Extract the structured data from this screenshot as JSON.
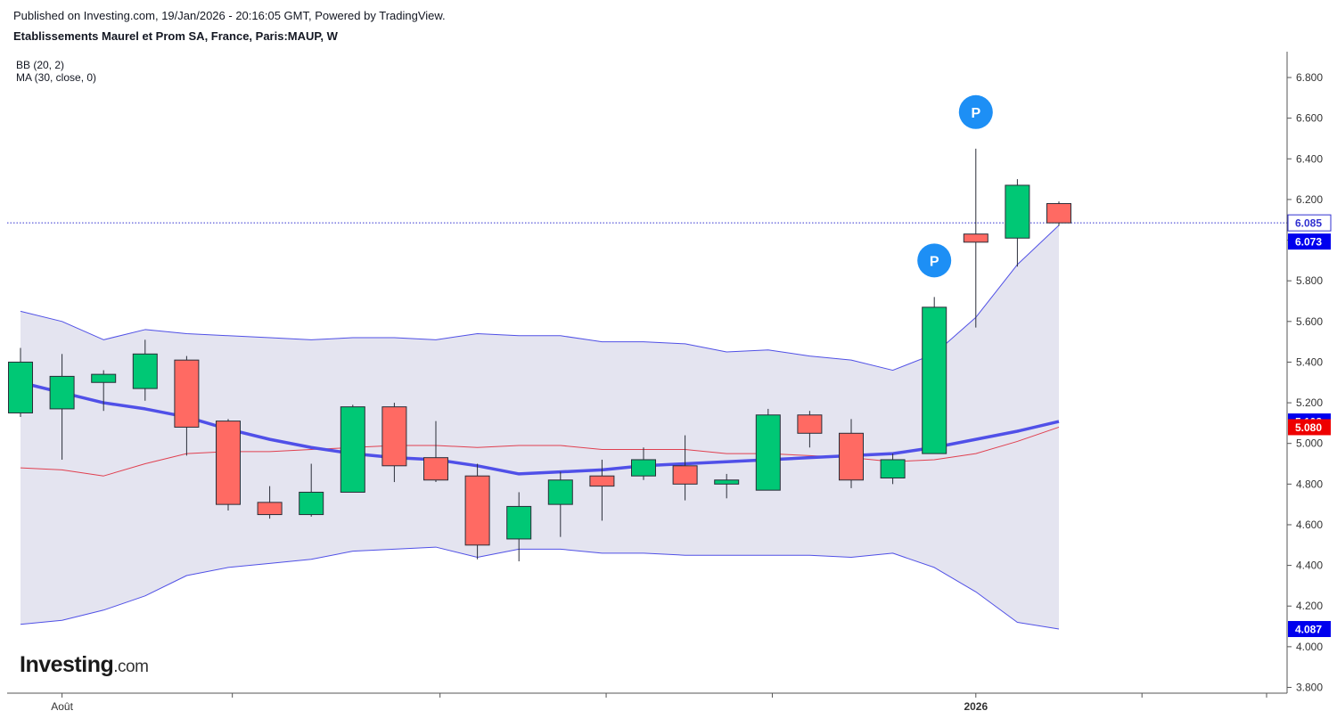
{
  "header": {
    "published": "Published on Investing.com, 19/Jan/2026 - 20:16:05 GMT, Powered by TradingView.",
    "title": "Etablissements Maurel et Prom SA, France, Paris:MAUP, W"
  },
  "indicators": {
    "bb_label": "BB (20, 2)",
    "ma_label": "MA (30, close, 0)"
  },
  "logo": {
    "brand": "Investing",
    "suffix": ".com"
  },
  "colors": {
    "up": "#00c875",
    "down": "#ff6a63",
    "band_fill": "#e4e4f0",
    "bb_line": "#5050e6",
    "ma_line": "#5050e8",
    "basis_line": "#e04050",
    "last_price_line": "#3030d0",
    "badge_blue": "#0000ee",
    "badge_red": "#ee0000",
    "p_marker": "#1d8ff5"
  },
  "chart_data": {
    "type": "candlestick",
    "timeframe": "W",
    "ylim": [
      3.8,
      6.9
    ],
    "y_ticks": [
      "3.800",
      "4.000",
      "4.200",
      "4.400",
      "4.600",
      "4.800",
      "5.000",
      "5.200",
      "5.400",
      "5.600",
      "5.800",
      "6.000",
      "6.200",
      "6.400",
      "6.600",
      "6.800"
    ],
    "x_labels": [
      {
        "label": "Août",
        "index": 1
      },
      {
        "label": "2026",
        "index": 23
      }
    ],
    "candles": [
      {
        "o": 5.15,
        "h": 5.47,
        "l": 5.13,
        "c": 5.4
      },
      {
        "o": 5.17,
        "h": 5.44,
        "l": 4.92,
        "c": 5.33
      },
      {
        "o": 5.3,
        "h": 5.36,
        "l": 5.16,
        "c": 5.34
      },
      {
        "o": 5.27,
        "h": 5.51,
        "l": 5.21,
        "c": 5.44
      },
      {
        "o": 5.41,
        "h": 5.43,
        "l": 4.94,
        "c": 5.08
      },
      {
        "o": 5.11,
        "h": 5.12,
        "l": 4.67,
        "c": 4.7
      },
      {
        "o": 4.71,
        "h": 4.79,
        "l": 4.63,
        "c": 4.65
      },
      {
        "o": 4.65,
        "h": 4.9,
        "l": 4.64,
        "c": 4.76
      },
      {
        "o": 4.76,
        "h": 5.19,
        "l": 4.76,
        "c": 5.18
      },
      {
        "o": 5.18,
        "h": 5.2,
        "l": 4.81,
        "c": 4.89
      },
      {
        "o": 4.93,
        "h": 5.11,
        "l": 4.81,
        "c": 4.82
      },
      {
        "o": 4.84,
        "h": 4.9,
        "l": 4.43,
        "c": 4.5
      },
      {
        "o": 4.53,
        "h": 4.76,
        "l": 4.42,
        "c": 4.69
      },
      {
        "o": 4.7,
        "h": 4.86,
        "l": 4.54,
        "c": 4.82
      },
      {
        "o": 4.84,
        "h": 4.92,
        "l": 4.62,
        "c": 4.79
      },
      {
        "o": 4.84,
        "h": 4.98,
        "l": 4.82,
        "c": 4.92
      },
      {
        "o": 4.89,
        "h": 5.04,
        "l": 4.72,
        "c": 4.8
      },
      {
        "o": 4.8,
        "h": 4.85,
        "l": 4.73,
        "c": 4.82
      },
      {
        "o": 4.77,
        "h": 5.17,
        "l": 4.77,
        "c": 5.14
      },
      {
        "o": 5.14,
        "h": 5.16,
        "l": 4.98,
        "c": 5.05
      },
      {
        "o": 5.05,
        "h": 5.12,
        "l": 4.78,
        "c": 4.82
      },
      {
        "o": 4.83,
        "h": 4.95,
        "l": 4.8,
        "c": 4.92
      },
      {
        "o": 4.95,
        "h": 5.72,
        "l": 4.95,
        "c": 5.67
      },
      {
        "o": 6.03,
        "h": 6.45,
        "l": 5.57,
        "c": 5.99
      },
      {
        "o": 6.01,
        "h": 6.3,
        "l": 5.87,
        "c": 6.27
      },
      {
        "o": 6.18,
        "h": 6.19,
        "l": 6.07,
        "c": 6.085
      }
    ],
    "series": [
      {
        "name": "BB upper",
        "values": [
          5.65,
          5.6,
          5.51,
          5.56,
          5.54,
          5.53,
          5.52,
          5.51,
          5.52,
          5.52,
          5.51,
          5.54,
          5.53,
          5.53,
          5.5,
          5.5,
          5.49,
          5.45,
          5.46,
          5.43,
          5.41,
          5.36,
          5.44,
          5.62,
          5.88,
          6.073
        ]
      },
      {
        "name": "BB lower",
        "values": [
          4.11,
          4.13,
          4.18,
          4.25,
          4.35,
          4.39,
          4.41,
          4.43,
          4.47,
          4.48,
          4.49,
          4.44,
          4.48,
          4.48,
          4.46,
          4.46,
          4.45,
          4.45,
          4.45,
          4.45,
          4.44,
          4.46,
          4.39,
          4.27,
          4.12,
          4.087
        ]
      },
      {
        "name": "BB basis",
        "values": [
          4.88,
          4.87,
          4.84,
          4.9,
          4.95,
          4.96,
          4.96,
          4.97,
          4.98,
          4.99,
          4.99,
          4.98,
          4.99,
          4.99,
          4.97,
          4.97,
          4.97,
          4.95,
          4.95,
          4.94,
          4.93,
          4.91,
          4.92,
          4.95,
          5.01,
          5.08
        ]
      },
      {
        "name": "MA",
        "values": [
          5.3,
          5.25,
          5.2,
          5.17,
          5.13,
          5.07,
          5.02,
          4.98,
          4.95,
          4.93,
          4.92,
          4.89,
          4.85,
          4.86,
          4.87,
          4.89,
          4.9,
          4.91,
          4.92,
          4.93,
          4.94,
          4.95,
          4.98,
          5.02,
          5.06,
          5.108
        ]
      }
    ],
    "price_badges": [
      {
        "label": "6.085",
        "value": 6.085,
        "bg": "#ffffff",
        "fg": "#3030d0",
        "outline": true
      },
      {
        "label": "6.073",
        "value": 6.073,
        "bg": "#0000ee",
        "fg": "#ffffff"
      },
      {
        "label": "5.108",
        "value": 5.108,
        "bg": "#0000ee",
        "fg": "#ffffff"
      },
      {
        "label": "5.080",
        "value": 5.08,
        "bg": "#ee0000",
        "fg": "#ffffff"
      },
      {
        "label": "4.087",
        "value": 4.087,
        "bg": "#0000ee",
        "fg": "#ffffff"
      }
    ],
    "last_price": 6.085,
    "markers": [
      {
        "label": "P",
        "index": 22,
        "value": 5.9
      },
      {
        "label": "P",
        "index": 23,
        "value": 6.63
      }
    ]
  }
}
